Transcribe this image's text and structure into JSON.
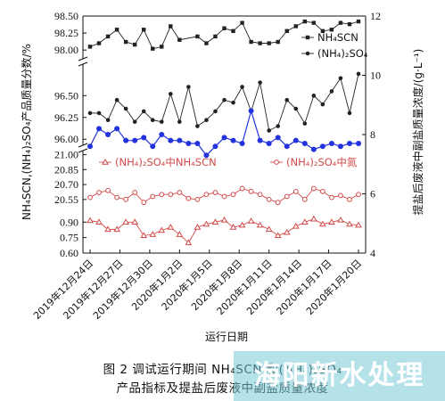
{
  "chart_data": {
    "type": "line",
    "xlabel": "运行日期",
    "ylabel_left": "NH₄SCN,(NH₄)₂SO₄产品质量分数/%",
    "ylabel_right": "提盐后废液中副盐质量浓度/(g·L⁻¹)",
    "x_ticks": [
      "2019年12月24日",
      "2019年12月27日",
      "2019年12月30日",
      "2020年1月2日",
      "2020年1月5日",
      "2020年1月8日",
      "2020年1月11日",
      "2020年1月14日",
      "2020年1月17日",
      "2020年1月20日"
    ],
    "y_left_ticks": [
      "98.50",
      "98.25",
      "98.00",
      "96.50",
      "96.25",
      "96.00",
      "21.00",
      "20.85",
      "20.70",
      "20.55",
      "0.90",
      "0.75",
      "0.60"
    ],
    "y_right_ticks": [
      "4",
      "6",
      "8",
      "10",
      "12"
    ],
    "y_right_range": [
      4,
      12
    ],
    "legend": [
      "NH₄SCN",
      "(NH₄)₂SO₄",
      "(NH₄)₂SO₄中NH₄SCN",
      "(NH₄)₂SO₄中氮"
    ],
    "series": [
      {
        "name": "NH₄SCN",
        "axis": "left",
        "color": "#222222",
        "marker": "square",
        "values": [
          98.05,
          98.1,
          98.2,
          98.3,
          98.12,
          98.08,
          98.3,
          98.02,
          98.05,
          98.35,
          98.15,
          97.9,
          98.2,
          98.1,
          98.2,
          98.32,
          98.28,
          98.4,
          98.12,
          98.1,
          98.1,
          98.12,
          98.28,
          98.35,
          98.42,
          98.4,
          98.28,
          98.3,
          98.4,
          98.38,
          98.42
        ]
      },
      {
        "name": "(NH₄)₂SO₄",
        "axis": "left",
        "color": "#222222",
        "marker": "circle",
        "values": [
          96.3,
          96.3,
          96.22,
          96.45,
          96.35,
          96.2,
          96.32,
          96.22,
          96.2,
          96.52,
          96.2,
          96.6,
          96.15,
          96.22,
          96.32,
          96.45,
          96.42,
          96.6,
          96.32,
          96.65,
          96.1,
          96.15,
          96.45,
          96.35,
          96.18,
          96.5,
          96.4,
          96.55,
          96.7,
          96.3,
          96.75
        ]
      },
      {
        "name": "",
        "axis": "right",
        "color": "#2233dd",
        "marker": "circle",
        "values": [
          7.6,
          8.2,
          8.0,
          8.2,
          7.8,
          7.8,
          7.9,
          7.6,
          8.0,
          7.8,
          7.8,
          7.7,
          7.7,
          7.3,
          7.6,
          7.9,
          7.8,
          7.7,
          8.8,
          7.8,
          7.7,
          7.9,
          7.6,
          7.8,
          7.7,
          7.5,
          7.6,
          7.7,
          7.6,
          7.7,
          7.7
        ]
      },
      {
        "name": "(NH₄)₂SO₄中NH₄SCN",
        "axis": "left",
        "color": "#d24a4a",
        "marker": "triangle",
        "values": [
          0.915,
          0.9,
          0.83,
          0.83,
          0.9,
          0.9,
          0.77,
          0.78,
          0.82,
          0.85,
          0.78,
          0.7,
          0.85,
          0.88,
          0.9,
          0.92,
          0.85,
          0.87,
          0.91,
          0.87,
          0.83,
          0.77,
          0.8,
          0.86,
          0.9,
          0.93,
          0.88,
          0.9,
          0.92,
          0.88,
          0.87
        ]
      },
      {
        "name": "(NH₄)₂SO₄中氮",
        "axis": "left",
        "color": "#d24a4a",
        "marker": "circle-open",
        "values": [
          20.57,
          20.62,
          20.64,
          20.57,
          20.55,
          20.62,
          20.52,
          20.58,
          20.6,
          20.6,
          20.62,
          20.56,
          20.55,
          20.6,
          20.62,
          20.58,
          20.6,
          20.66,
          20.63,
          20.6,
          20.55,
          20.52,
          20.58,
          20.63,
          20.55,
          20.66,
          20.63,
          20.57,
          20.59,
          20.55,
          20.6
        ]
      }
    ]
  },
  "caption": {
    "line1": "图 2   调试运行期间 NH₄SCN 和(NH₄)₂SO₄",
    "line2": "产品指标及提盐后废液中副盐质量浓度"
  },
  "watermark": {
    "text": "海阳新水处理",
    "color": "#78c8d7"
  }
}
